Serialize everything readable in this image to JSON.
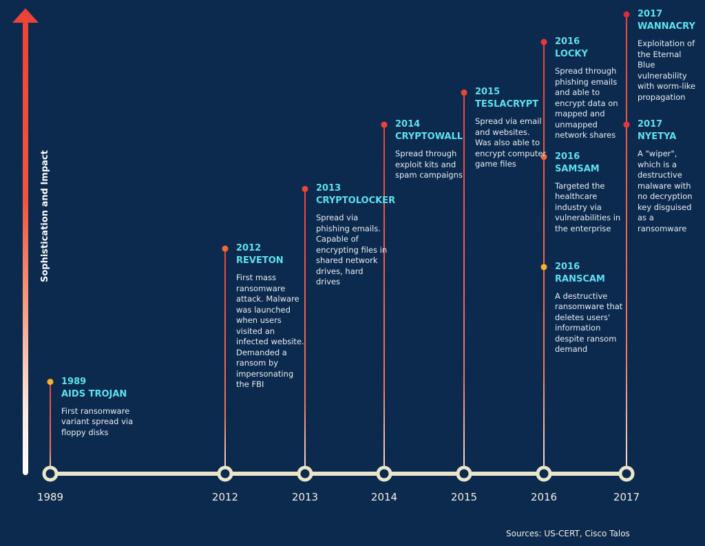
{
  "axis": {
    "label": "Sophistication and Impact",
    "gradient_colors": [
      "#ee4438",
      "#ffffff"
    ]
  },
  "colors": {
    "background": "#0c2a4e",
    "title": "#5fe0ef",
    "text": "#ffffff",
    "timeline": "#e9e6c9",
    "stem_red": "#ee4438",
    "dot_yellow": "#f6b32b",
    "dot_orange": "#f06a35",
    "dot_red": "#e8383d",
    "dot_crimson": "#d92b3a"
  },
  "years": [
    "1989",
    "2012",
    "2013",
    "2014",
    "2015",
    "2016",
    "2017"
  ],
  "events": [
    {
      "year": "1989",
      "name": "AIDS TROJAN",
      "desc": "First ransomware variant spread via floppy disks",
      "impact": 0.2,
      "dot": "#f6b32b"
    },
    {
      "year": "2012",
      "name": "REVETON",
      "desc": "First mass ransomware attack. Malware was launched when users visited an infected website. Demanded a ransom by impersonating the FBI",
      "impact": 0.49,
      "dot": "#f06a35"
    },
    {
      "year": "2013",
      "name": "CRYPTOLOCKER",
      "desc": "Spread via phishing emails. Capable of encrypting files in shared network drives, hard drives",
      "impact": 0.62,
      "dot": "#ee4438"
    },
    {
      "year": "2014",
      "name": "CRYPTOWALL",
      "desc": "Spread through exploit kits and spam campaigns",
      "impact": 0.76,
      "dot": "#ee4438"
    },
    {
      "year": "2015",
      "name": "TESLACRYPT",
      "desc": "Spread via email and websites. Was also able to encrypt computer game files",
      "impact": 0.83,
      "dot": "#ee4438"
    },
    {
      "year": "2016",
      "name": "LOCKY",
      "desc": "Spread through phishing emails and able to encrypt data on mapped and unmapped network shares",
      "impact": 0.94,
      "dot": "#e8383d"
    },
    {
      "year": "2016",
      "name": "SAMSAM",
      "desc": "Targeted the healthcare industry via vulnerabilities in the enterprise",
      "impact": 0.69,
      "dot": "#f06a35"
    },
    {
      "year": "2016",
      "name": "RANSCAM",
      "desc": "A destructive ransomware that deletes users' information despite ransom demand",
      "impact": 0.45,
      "dot": "#f6b32b"
    },
    {
      "year": "2017",
      "name": "WANNACRY",
      "desc": "Exploitation of the Eternal Blue vulnerability with worm-like propagation",
      "impact": 1.0,
      "dot": "#d92b3a"
    },
    {
      "year": "2017",
      "name": "NYETYA",
      "desc": "A \"wiper\", which is a destructive malware with no decryption key disguised as a ransomware",
      "impact": 0.76,
      "dot": "#e8383d"
    }
  ],
  "footer": {
    "sources": "Sources: US-CERT, Cisco Talos"
  }
}
